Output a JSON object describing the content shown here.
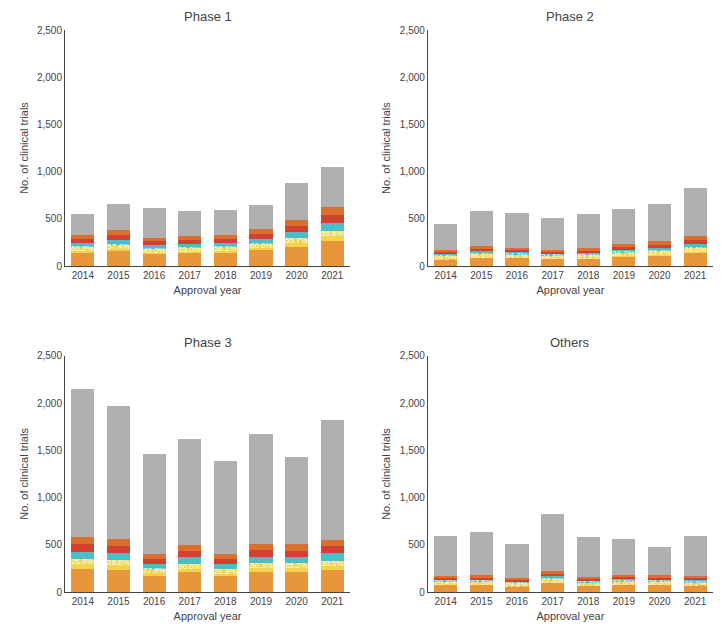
{
  "chart_data": [
    {
      "type": "bar",
      "title": "Phase 1",
      "xlabel": "Approval year",
      "ylabel": "No. of clinical trials",
      "categories": [
        "2014",
        "2015",
        "2016",
        "2017",
        "2018",
        "2019",
        "2020",
        "2021"
      ],
      "stacked": true,
      "grid": false,
      "ylim": [
        0,
        2500
      ],
      "yticks": [
        0,
        500,
        {
          "value": 1000,
          "label": "1,000"
        },
        {
          "value": 1500,
          "label": "1,500"
        },
        {
          "value": 2000,
          "label": "2,000"
        },
        {
          "value": 2500,
          "label": "2,500"
        }
      ],
      "series": [
        {
          "color": "#E8963C",
          "values": [
            139.062,
            159.1128,
            125.538,
            133.98,
            139.0158,
            165.438,
            205.8672,
            261.5844
          ]
        },
        {
          "color": "#F2D44A",
          "values": [
            59.598,
            68.1912,
            53.802,
            57.42,
            59.5782,
            70.902,
            88.2288,
            112.1076
          ]
        },
        {
          "color": "#4BBFC8",
          "values": [
            46.354,
            53.0376,
            41.846,
            44.66,
            46.3386,
            55.146,
            68.6224,
            87.1948
          ]
        },
        {
          "color": "#D44030",
          "values": [
            43.043,
            49.2492,
            38.857,
            41.47,
            43.0287,
            51.207,
            63.7208,
            80.9666
          ]
        },
        {
          "color": "#D97030",
          "values": [
            43.043,
            49.2492,
            38.857,
            41.47,
            43.0287,
            51.207,
            63.7208,
            80.9666
          ]
        },
        {
          "color": "#B0B0B0",
          "values": [
            218.9,
            281.16,
            311.1,
            261,
            259.01,
            256.1,
            389.84,
            422.18
          ]
        }
      ],
      "annotations": [
        {
          "x": "2014",
          "text": "60.2%",
          "color": "#FFFFFF"
        },
        {
          "x": "2015",
          "text": "57.4%",
          "color": "#FFFFFF"
        },
        {
          "x": "2016",
          "text": "49.0%",
          "color": "#FFFFFF"
        },
        {
          "x": "2017",
          "text": "55.0%",
          "color": "#FFFFFF"
        },
        {
          "x": "2018",
          "text": "56.1%",
          "color": "#FFFFFF"
        },
        {
          "x": "2019",
          "text": "60.6%",
          "color": "#FFFFFF"
        },
        {
          "x": "2020",
          "text": "55.7%",
          "color": "#FFFFFF"
        },
        {
          "x": "2021",
          "text": "59.6%",
          "color": "#FFFFFF"
        }
      ]
    },
    {
      "type": "bar",
      "title": "Phase 2",
      "xlabel": "Approval year",
      "ylabel": "No. of clinical trials",
      "categories": [
        "2014",
        "2015",
        "2016",
        "2017",
        "2018",
        "2019",
        "2020",
        "2021"
      ],
      "stacked": true,
      "grid": false,
      "ylim": [
        0,
        2500
      ],
      "yticks": [
        0,
        500,
        {
          "value": 1000,
          "label": "1,000"
        },
        {
          "value": 1500,
          "label": "1,500"
        },
        {
          "value": 2000,
          "label": "2,000"
        },
        {
          "value": 2500,
          "label": "2,500"
        }
      ],
      "series": [
        {
          "color": "#E8963C",
          "values": [
            72.765,
            89.1576,
            81.6144,
            73.3866,
            78.309,
            97.524,
            109.2168,
            133.4025
          ]
        },
        {
          "color": "#F2D44A",
          "values": [
            31.185,
            38.2104,
            34.9776,
            31.4514,
            33.561,
            41.796,
            46.8072,
            57.1725
          ]
        },
        {
          "color": "#4BBFC8",
          "values": [
            24.255,
            29.7192,
            27.2048,
            24.4622,
            26.103,
            32.508,
            36.4056,
            44.4675
          ]
        },
        {
          "color": "#D44030",
          "values": [
            22.5225,
            27.5964,
            25.2616,
            22.7149,
            24.2385,
            30.186,
            33.8052,
            41.29125
          ]
        },
        {
          "color": "#D97030",
          "values": [
            22.5225,
            27.5964,
            25.2616,
            22.7149,
            24.2385,
            30.186,
            33.8052,
            41.29125
          ]
        },
        {
          "color": "#B0B0B0",
          "values": [
            276.75,
            367.72,
            365.68,
            330.27,
            363.55,
            367.8,
            399.96,
            507.375
          ]
        }
      ],
      "annotations": [
        {
          "x": "2014",
          "text": "38.5%",
          "color": "#FFFFFF"
        },
        {
          "x": "2015",
          "text": "36.6%",
          "color": "#FFFFFF"
        },
        {
          "x": "2016",
          "text": "34.7%",
          "color": "#FFFFFF"
        },
        {
          "x": "2017",
          "text": "34.6%",
          "color": "#FFFFFF"
        },
        {
          "x": "2018",
          "text": "33.9%",
          "color": "#FFFFFF"
        },
        {
          "x": "2019",
          "text": "38.7%",
          "color": "#FFFFFF"
        },
        {
          "x": "2020",
          "text": "39.4%",
          "color": "#FFFFFF"
        },
        {
          "x": "2021",
          "text": "38.5%",
          "color": "#FFFFFF"
        }
      ]
    },
    {
      "type": "bar",
      "title": "Phase 3",
      "xlabel": "Approval year",
      "ylabel": "No. of clinical trials",
      "categories": [
        "2014",
        "2015",
        "2016",
        "2017",
        "2018",
        "2019",
        "2020",
        "2021"
      ],
      "stacked": true,
      "grid": false,
      "ylim": [
        0,
        2500
      ],
      "yticks": [
        0,
        500,
        {
          "value": 1000,
          "label": "1,000"
        },
        {
          "value": 1500,
          "label": "1,500"
        },
        {
          "value": 2000,
          "label": "2,000"
        },
        {
          "value": 2500,
          "label": "2,500"
        }
      ],
      "series": [
        {
          "color": "#E8963C",
          "values": [
            242.907,
            236.6364,
            170.4696,
            208.2024,
            168.1344,
            212.5242,
            211.4112,
            233.142
          ]
        },
        {
          "color": "#F2D44A",
          "values": [
            104.103,
            101.4156,
            73.0584,
            89.2296,
            72.0576,
            91.0818,
            90.6048,
            99.918
          ]
        },
        {
          "color": "#4BBFC8",
          "values": [
            80.969,
            78.8788,
            56.8232,
            69.4008,
            56.0448,
            70.8414,
            70.4704,
            77.714
          ]
        },
        {
          "color": "#D44030",
          "values": [
            75.1855,
            73.2446,
            52.7644,
            64.4436,
            52.0416,
            65.7813,
            65.4368,
            72.163
          ]
        },
        {
          "color": "#D97030",
          "values": [
            75.1855,
            73.2446,
            52.7644,
            64.4436,
            52.0416,
            65.7813,
            65.4368,
            72.163
          ]
        },
        {
          "color": "#B0B0B0",
          "values": [
            1571.65,
            1406.58,
            1054.12,
            1124.28,
            989.68,
            1163.99,
            926.64,
            1264.9
          ]
        }
      ],
      "annotations": [
        {
          "x": "2014",
          "text": "26.9%",
          "color": "#FFFFFF"
        },
        {
          "x": "2015",
          "text": "28.6%",
          "color": "#FFFFFF"
        },
        {
          "x": "2016",
          "text": "27.8%",
          "color": "#FFFFFF"
        },
        {
          "x": "2017",
          "text": "30.6%",
          "color": "#FFFFFF"
        },
        {
          "x": "2018",
          "text": "28.8%",
          "color": "#FFFFFF"
        },
        {
          "x": "2019",
          "text": "30.3%",
          "color": "#FFFFFF"
        },
        {
          "x": "2020",
          "text": "35.2%",
          "color": "#FFFFFF"
        },
        {
          "x": "2021",
          "text": "30.5%",
          "color": "#FFFFFF"
        }
      ]
    },
    {
      "type": "bar",
      "title": "Others",
      "xlabel": "Approval year",
      "ylabel": "No. of clinical trials",
      "categories": [
        "2014",
        "2015",
        "2016",
        "2017",
        "2018",
        "2019",
        "2020",
        "2021"
      ],
      "stacked": true,
      "grid": false,
      "ylim": [
        0,
        2500
      ],
      "yticks": [
        0,
        500,
        {
          "value": 1000,
          "label": "1,000"
        },
        {
          "value": 1500,
          "label": "1,500"
        },
        {
          "value": 2000,
          "label": "2,000"
        },
        {
          "value": 2500,
          "label": "2,500"
        }
      ],
      "series": [
        {
          "color": "#E8963C",
          "values": [
            72.8532,
            73.92,
            63.8316,
            94.122,
            67.4772,
            76.44,
            73.7856,
            69.8796
          ]
        },
        {
          "color": "#F2D44A",
          "values": [
            31.2228,
            31.68,
            27.3564,
            40.338,
            28.9188,
            32.76,
            31.6224,
            29.9484
          ]
        },
        {
          "color": "#4BBFC8",
          "values": [
            24.2844,
            24.64,
            21.2772,
            31.374,
            22.4924,
            25.48,
            24.5952,
            23.2932
          ]
        },
        {
          "color": "#D44030",
          "values": [
            22.5498,
            22.88,
            19.7574,
            29.133,
            20.8858,
            23.66,
            22.8384,
            21.6294
          ]
        },
        {
          "color": "#D97030",
          "values": [
            22.5498,
            22.88,
            19.7574,
            29.133,
            20.8858,
            23.66,
            22.8384,
            21.6294
          ]
        },
        {
          "color": "#B0B0B0",
          "values": [
            416.54,
            464,
            358.02,
            605.9,
            419.34,
            378,
            304.32,
            423.62
          ]
        }
      ],
      "annotations": [
        {
          "x": "2014",
          "text": "29.4%",
          "color": "#FFFFFF"
        },
        {
          "x": "2015",
          "text": "27.5%",
          "color": "#FFFFFF"
        },
        {
          "x": "2016",
          "text": "29.8%",
          "color": "#FFFFFF"
        },
        {
          "x": "2017",
          "text": "27.0%",
          "color": "#FFFFFF"
        },
        {
          "x": "2018",
          "text": "27.7%",
          "color": "#FFFFFF"
        },
        {
          "x": "2019",
          "text": "32.5%",
          "color": "#FFFFFF"
        },
        {
          "x": "2020",
          "text": "36.6%",
          "color": "#FFFFFF"
        },
        {
          "x": "2021",
          "text": "28.2%",
          "color": "#FFFFFF"
        }
      ]
    }
  ]
}
